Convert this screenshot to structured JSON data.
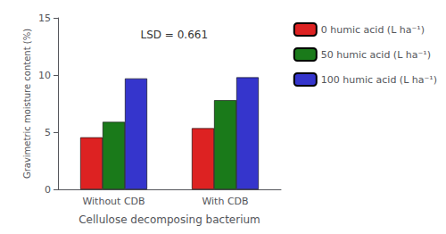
{
  "chart_data": {
    "type": "bar",
    "categories": [
      "Without CDB",
      "With CDB"
    ],
    "series": [
      {
        "name": "0 humic acid (L ha⁻¹)",
        "color": "#dd2222",
        "values": [
          4.55,
          5.35
        ]
      },
      {
        "name": "50 humic acid (L ha⁻¹)",
        "color": "#1a7a1a",
        "values": [
          5.9,
          7.8
        ]
      },
      {
        "name": "100 humic acid (L ha⁻¹)",
        "color": "#3535cc",
        "values": [
          9.7,
          9.8
        ]
      }
    ],
    "ylabel": "Gravimetric moisture content (%)",
    "xlabel": "Cellulose decomposing bacterium",
    "ylim": [
      0,
      15
    ],
    "yticks": [
      0,
      5,
      10,
      15
    ],
    "annotation": "LSD = 0.661",
    "grid": false,
    "legend": "right"
  }
}
